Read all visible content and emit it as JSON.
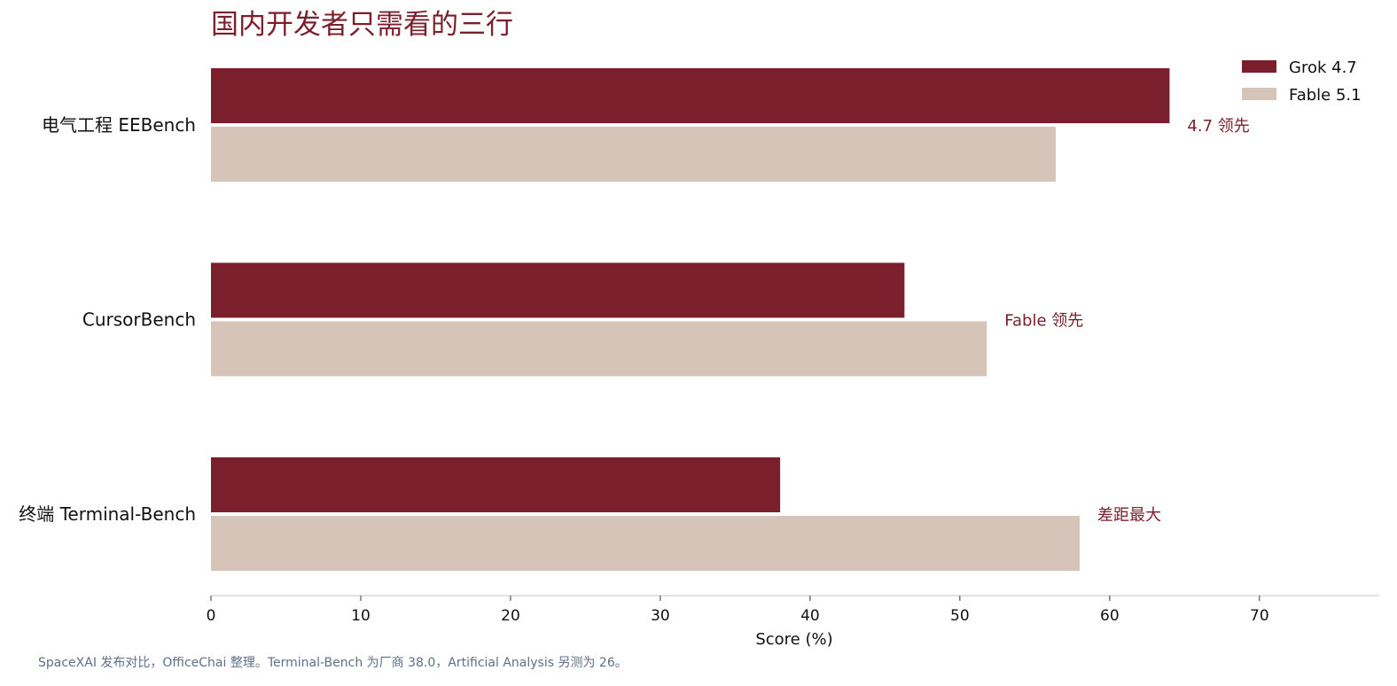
{
  "chart_data": {
    "type": "bar",
    "orientation": "horizontal",
    "title": "国内开发者只需看的三行",
    "xlabel": "Score (%)",
    "ylabel": "",
    "xlim": [
      0,
      78
    ],
    "xticks": [
      0,
      10,
      20,
      30,
      40,
      50,
      60,
      70
    ],
    "grid": false,
    "legend_position": "top-right",
    "categories": [
      "电气工程 EEBench",
      "CursorBench",
      "终端 Terminal-Bench"
    ],
    "series": [
      {
        "name": "Grok 4.7",
        "color": "#7b1f2d",
        "values": [
          64,
          46.3,
          38
        ]
      },
      {
        "name": "Fable 5.1",
        "color": "#d6c4b8",
        "values": [
          56.4,
          51.8,
          58
        ]
      }
    ],
    "annotations": [
      "4.7 领先",
      "Fable 领先",
      "差距最大"
    ],
    "footnote": "SpaceXAI 发布对比，OfficeChai 整理。Terminal-Bench 为厂商 38.0，Artificial Analysis 另测为 26。"
  }
}
